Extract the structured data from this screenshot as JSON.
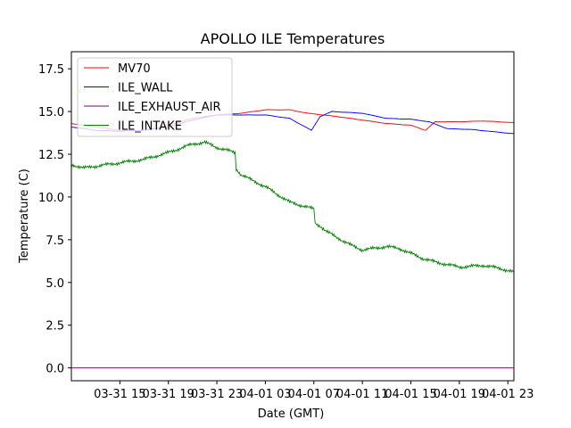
{
  "chart_data": {
    "type": "line",
    "title": "APOLLO ILE Temperatures",
    "xlabel": "Date (GMT)",
    "ylabel": "Temperature (C)",
    "xlim": [
      11,
      47.5
    ],
    "ylim": [
      -0.75,
      18.5
    ],
    "grid": false,
    "legend": "top-left",
    "x_ticks": [
      {
        "value": 15,
        "label": "03-31 15"
      },
      {
        "value": 19,
        "label": "03-31 19"
      },
      {
        "value": 23,
        "label": "03-31 23"
      },
      {
        "value": 27,
        "label": "04-01 03"
      },
      {
        "value": 31,
        "label": "04-01 07"
      },
      {
        "value": 35,
        "label": "04-01 11"
      },
      {
        "value": 39,
        "label": "04-01 15"
      },
      {
        "value": 43,
        "label": "04-01 19"
      },
      {
        "value": 47,
        "label": "04-01 23"
      }
    ],
    "y_ticks": [
      {
        "value": 0,
        "label": "0.0"
      },
      {
        "value": 2.5,
        "label": "2.5"
      },
      {
        "value": 5,
        "label": "5.0"
      },
      {
        "value": 7.5,
        "label": "7.5"
      },
      {
        "value": 10,
        "label": "10.0"
      },
      {
        "value": 12.5,
        "label": "12.5"
      },
      {
        "value": 15,
        "label": "15.0"
      },
      {
        "value": 17.5,
        "label": "17.5"
      }
    ],
    "series": [
      {
        "name": "MV70",
        "color": "#ff0000",
        "x": [
          11,
          13,
          15,
          17,
          19,
          21,
          23,
          25,
          27,
          29,
          30.5,
          33,
          35,
          37,
          39,
          40.2,
          41,
          43,
          45,
          47.5
        ],
        "values": [
          14.3,
          14.1,
          13.9,
          13.9,
          14.2,
          14.6,
          14.8,
          14.9,
          15.1,
          15.1,
          14.9,
          14.7,
          14.5,
          14.3,
          14.2,
          13.9,
          14.4,
          14.4,
          14.45,
          14.35
        ]
      },
      {
        "name": "ILE_WALL",
        "color": "#0000ff",
        "x": [
          11,
          13,
          15,
          17,
          19,
          21,
          23,
          25,
          27,
          29,
          30.8,
          31.5,
          32.5,
          35,
          37,
          39,
          40.5,
          42,
          44,
          47.5
        ],
        "values": [
          14.1,
          13.9,
          13.85,
          13.9,
          14.1,
          14.5,
          14.8,
          14.8,
          14.8,
          14.6,
          13.9,
          14.7,
          15.0,
          14.9,
          14.6,
          14.55,
          14.4,
          14.0,
          13.95,
          13.7
        ]
      },
      {
        "name": "ILE_EXHAUST_AIR",
        "color": "#800080",
        "x": [
          11,
          47.5
        ],
        "values": [
          0.0,
          0.0
        ]
      },
      {
        "name": "ILE_INTAKE",
        "color": "#008000",
        "x": [
          11,
          12,
          13,
          15,
          17,
          19,
          21,
          22,
          23,
          24.5,
          24.6,
          25,
          27,
          29,
          31,
          31.1,
          32,
          34,
          35,
          37,
          38,
          40,
          41,
          43,
          45,
          46.5,
          47.5
        ],
        "values": [
          11.9,
          11.7,
          11.8,
          12.0,
          12.2,
          12.6,
          13.1,
          13.2,
          12.9,
          12.6,
          11.6,
          11.3,
          10.6,
          9.7,
          9.3,
          8.5,
          8.0,
          7.2,
          6.9,
          7.1,
          7.0,
          6.4,
          6.2,
          5.9,
          6.0,
          5.8,
          5.6
        ]
      }
    ]
  }
}
